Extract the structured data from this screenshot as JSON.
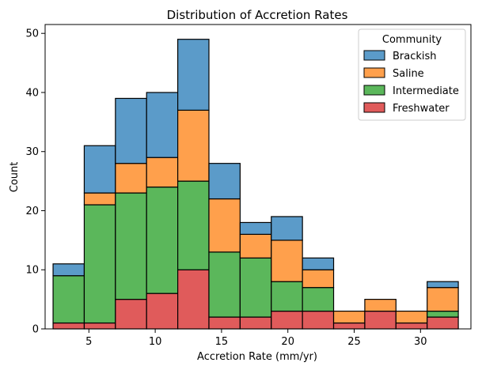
{
  "chart_data": {
    "type": "bar",
    "stacked": true,
    "title": "Distribution of Accretion Rates",
    "xlabel": "Accretion Rate (mm/yr)",
    "ylabel": "Count",
    "xlim": [
      1.7,
      33.8
    ],
    "ylim": [
      0,
      51.5
    ],
    "xticks": [
      5,
      10,
      15,
      20,
      25,
      30
    ],
    "yticks": [
      0,
      10,
      20,
      30,
      40,
      50
    ],
    "bin_edges": [
      2.3,
      4.65,
      7.0,
      9.35,
      11.7,
      14.05,
      16.4,
      18.75,
      21.1,
      23.45,
      25.8,
      28.15,
      30.5,
      32.85
    ],
    "legend": {
      "title": "Community",
      "position": "top-right"
    },
    "series": [
      {
        "name": "Freshwater",
        "color": "#e05b5b",
        "values": [
          1,
          1,
          5,
          6,
          10,
          2,
          2,
          3,
          3,
          1,
          3,
          1,
          2
        ]
      },
      {
        "name": "Intermediate",
        "color": "#5bb75b",
        "values": [
          8,
          20,
          18,
          18,
          15,
          11,
          10,
          5,
          4,
          0,
          0,
          0,
          1
        ]
      },
      {
        "name": "Saline",
        "color": "#ffa04c",
        "values": [
          0,
          2,
          5,
          5,
          12,
          9,
          4,
          7,
          3,
          2,
          2,
          2,
          4
        ]
      },
      {
        "name": "Brackish",
        "color": "#5b9bc9",
        "values": [
          2,
          8,
          11,
          11,
          12,
          6,
          2,
          4,
          2,
          0,
          0,
          0,
          1
        ]
      }
    ],
    "legend_order": [
      "Brackish",
      "Saline",
      "Intermediate",
      "Freshwater"
    ]
  }
}
